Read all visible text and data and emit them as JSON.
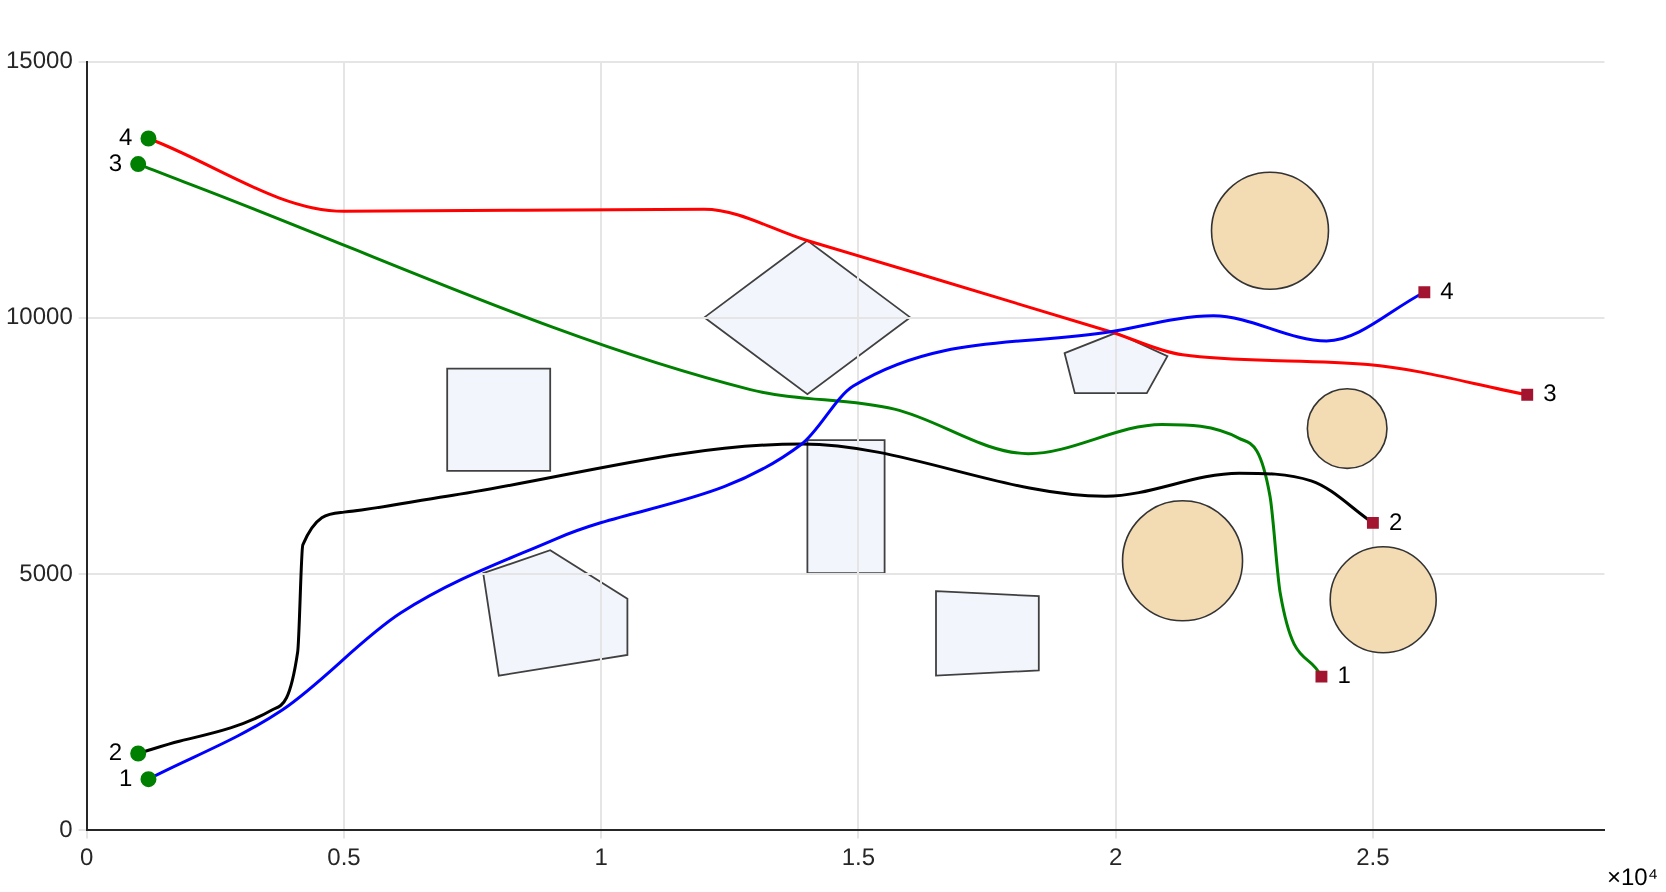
{
  "chart_data": {
    "type": "line",
    "xlim": [
      0,
      2.95
    ],
    "ylim": [
      0,
      15000
    ],
    "xticks": [
      0,
      0.5,
      1,
      1.5,
      2,
      2.5
    ],
    "yticks": [
      0,
      5000,
      10000,
      15000
    ],
    "grid": true,
    "legend": false,
    "series": [
      {
        "type": "bubble",
        "color": "#f3dbb3",
        "x": [
          2.3,
          2.45,
          2.13,
          2.52
        ],
        "values": [
          11700,
          7840,
          5260,
          4500
        ],
        "sizes": [
          0.95,
          0.44,
          1,
          0.78
        ]
      },
      {
        "color": "#0000ff",
        "marker": "none",
        "x": [
          0.12,
          0.38,
          0.61,
          0.91,
          1.39,
          1.49,
          1.99,
          2.19,
          2.41,
          2.6
        ],
        "values": [
          1000,
          2350,
          4240,
          5680,
          7540,
          8670,
          9730,
          10040,
          9550,
          10500
        ]
      },
      {
        "color": "#000000",
        "marker": "none",
        "x": [
          0.1,
          0.18,
          0.36,
          0.41,
          0.42,
          0.5,
          0.7,
          1.39,
          1.98,
          2.24,
          2.38,
          2.5
        ],
        "values": [
          1500,
          1740,
          2350,
          3480,
          5570,
          6210,
          6520,
          7540,
          6520,
          6970,
          6820,
          6000
        ]
      },
      {
        "color": "#008000",
        "marker": "none",
        "x": [
          0.1,
          0.19,
          1.29,
          1.57,
          1.83,
          2.09,
          2.24,
          2.3,
          2.32,
          2.4
        ],
        "values": [
          13000,
          12650,
          8600,
          8220,
          7350,
          7920,
          7650,
          6520,
          4620,
          3000
        ]
      },
      {
        "color": "#ff0000",
        "marker": "none",
        "x": [
          0.12,
          0.5,
          1.2,
          1.4,
          1.99,
          2.13,
          2.49,
          2.8
        ],
        "values": [
          13500,
          12080,
          12120,
          11510,
          9730,
          9280,
          9090,
          8500
        ]
      },
      {
        "type": "scatter",
        "color": "#008000",
        "marker": "circle",
        "x": [
          0.12,
          0.1,
          0.1,
          0.12
        ],
        "values": [
          1000,
          1500,
          13000,
          13500
        ]
      },
      {
        "type": "scatter",
        "color": "#a2142f",
        "marker": "square",
        "x": [
          2.4,
          2.5,
          2.8,
          2.6
        ],
        "values": [
          3000,
          6000,
          8500,
          10500
        ]
      }
    ],
    "annotations": [
      {
        "text": "1",
        "x": 0.12,
        "y": 1000
      },
      {
        "text": "2",
        "x": 0.1,
        "y": 1500
      },
      {
        "text": "3",
        "x": 0.1,
        "y": 13000
      },
      {
        "text": "4",
        "x": 0.12,
        "y": 13500
      },
      {
        "text": "1",
        "x": 2.4,
        "y": 3000
      },
      {
        "text": "2",
        "x": 2.5,
        "y": 6000
      },
      {
        "text": "3",
        "x": 2.8,
        "y": 8500
      },
      {
        "text": "4",
        "x": 2.6,
        "y": 10500
      },
      "×10⁴"
    ]
  }
}
